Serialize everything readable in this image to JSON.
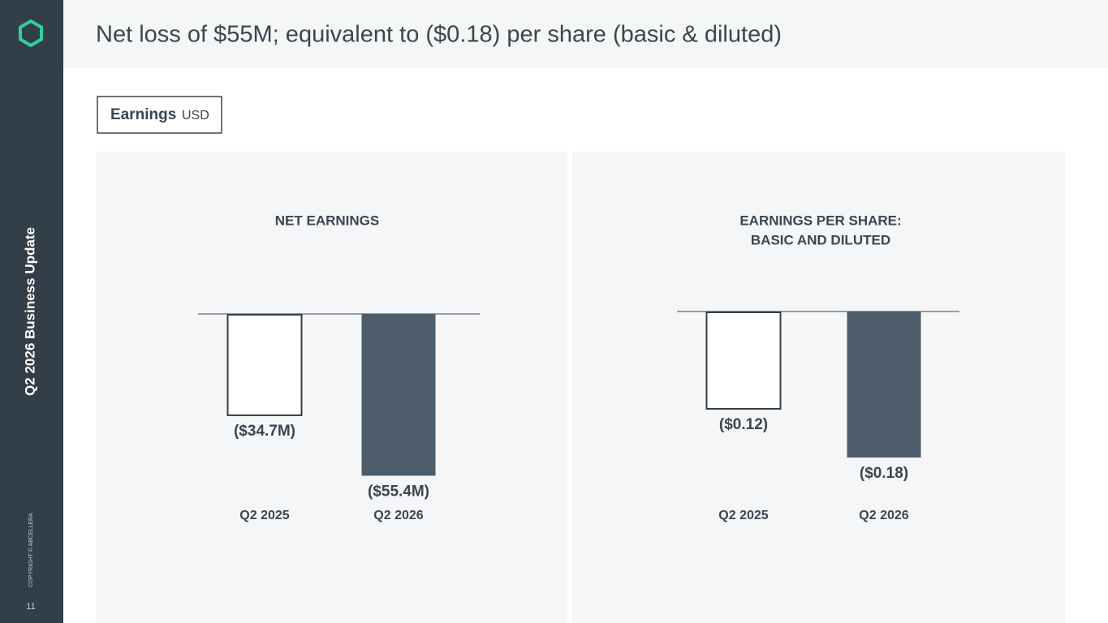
{
  "slide": {
    "title": "Net loss of $55M; equivalent to ($0.18) per share (basic & diluted)",
    "section": "Q2 2026 Business Update",
    "copyright": "COPYRIGHT © ABCELLERA",
    "page": "11",
    "tab_label": "Earnings",
    "tab_unit": "USD"
  },
  "chart_data": [
    {
      "type": "bar",
      "title": [
        "NET EARNINGS"
      ],
      "categories": [
        "Q2 2025",
        "Q2 2026"
      ],
      "values": [
        -34.7,
        -55.4
      ],
      "value_labels": [
        "($34.7M)",
        "($55.4M)"
      ],
      "colors": [
        "#ffffff",
        "#4d5d6b"
      ],
      "ylim": [
        -60,
        0
      ]
    },
    {
      "type": "bar",
      "title": [
        "EARNINGS PER SHARE:",
        "BASIC AND DILUTED"
      ],
      "categories": [
        "Q2 2025",
        "Q2 2026"
      ],
      "values": [
        -0.12,
        -0.18
      ],
      "value_labels": [
        "($0.12)",
        "($0.18)"
      ],
      "colors": [
        "#ffffff",
        "#4d5d6b"
      ],
      "ylim": [
        -0.2,
        0
      ]
    }
  ]
}
